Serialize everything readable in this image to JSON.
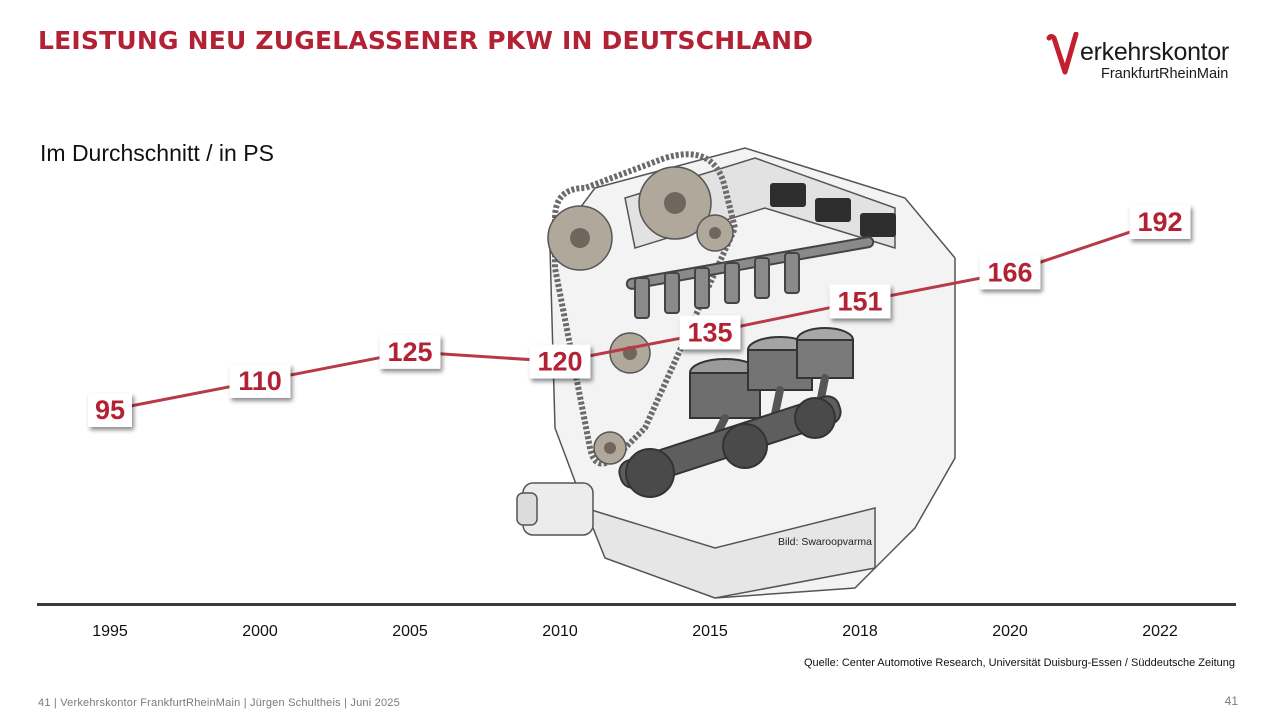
{
  "title": "LEISTUNG NEU ZUGELASSENER PKW IN DEUTSCHLAND",
  "subtitle": "Im Durchschnitt / in PS",
  "logo": {
    "name": "erkehrskontor",
    "initial": "V",
    "sub": "FrankfurtRheinMain"
  },
  "image_credit": "Bild: Swaroopvarma",
  "source": "Quelle: Center Automotive Research, Universität Duisburg-Essen / Süddeutsche Zeitung",
  "footer": "41 | Verkehrskontor FrankfurtRheinMain | Jürgen Schultheis | Juni 2025",
  "page_number": "41",
  "colors": {
    "accent": "#b22234",
    "line": "#b83a48",
    "axis": "#3a3a3a"
  },
  "chart_data": {
    "type": "line",
    "title": "LEISTUNG NEU ZUGELASSENER PKW IN DEUTSCHLAND",
    "subtitle": "Im Durchschnitt / in PS",
    "categories": [
      "1995",
      "2000",
      "2005",
      "2010",
      "2015",
      "2018",
      "2020",
      "2022"
    ],
    "series": [
      {
        "values": [
          95,
          110,
          125,
          120,
          135,
          151,
          166,
          192
        ]
      }
    ],
    "ylim": [
      95,
      192
    ],
    "grid": false,
    "legend": "none",
    "data_labels": true
  }
}
